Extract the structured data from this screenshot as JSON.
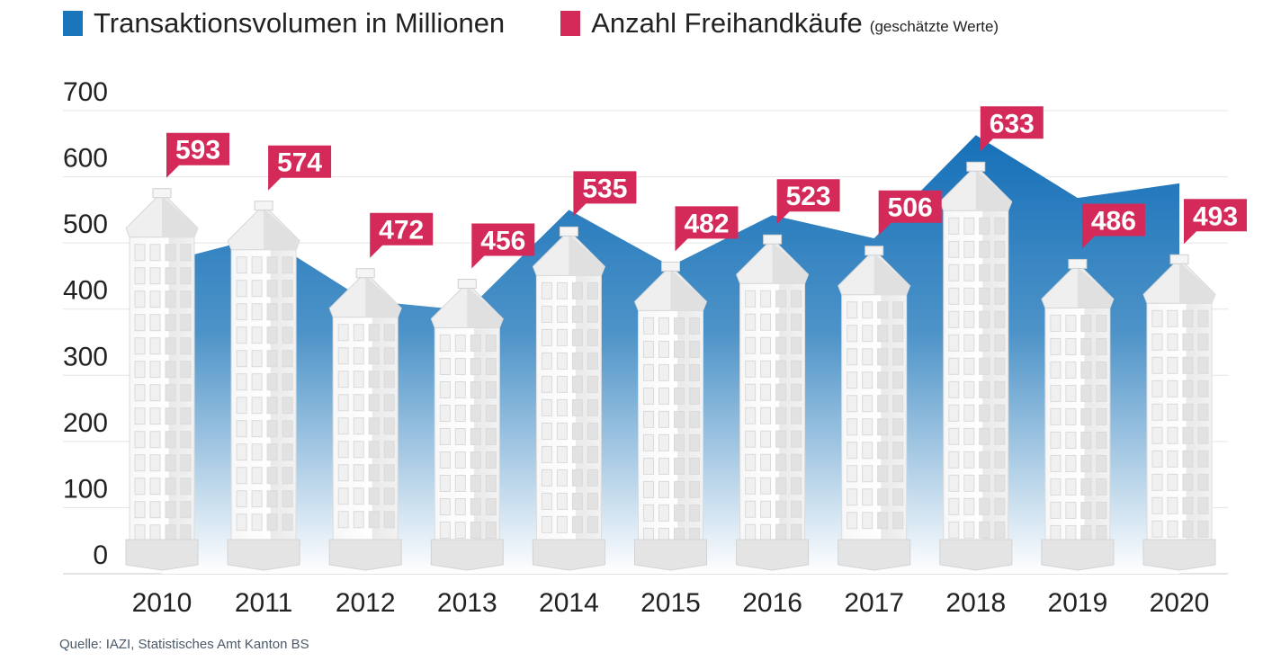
{
  "legend": {
    "series1": "Transaktionsvolumen in Millionen",
    "series2": "Anzahl Freihandkäufe",
    "series2_note": "(geschätzte Werte)"
  },
  "source": "Quelle: IAZI, Statistisches Amt Kanton BS",
  "colors": {
    "volume": "#1a75bb",
    "count": "#d42a5a"
  },
  "chart_data": {
    "type": "area+bar",
    "categories": [
      "2010",
      "2011",
      "2012",
      "2013",
      "2014",
      "2015",
      "2016",
      "2017",
      "2018",
      "2019",
      "2020"
    ],
    "series": [
      {
        "name": "Transaktionsvolumen in Millionen",
        "type": "area",
        "values": [
          470,
          510,
          413,
          398,
          550,
          465,
          542,
          507,
          663,
          568,
          590
        ]
      },
      {
        "name": "Anzahl Freihandkäufe (geschätzte Werte)",
        "type": "bar",
        "values": [
          593,
          574,
          472,
          456,
          535,
          482,
          523,
          506,
          633,
          486,
          493
        ]
      }
    ],
    "yticks": [
      "0",
      "100",
      "200",
      "300",
      "400",
      "500",
      "600",
      "700"
    ],
    "ylim": [
      0,
      700
    ],
    "grid": true,
    "legend_position": "top-left"
  }
}
